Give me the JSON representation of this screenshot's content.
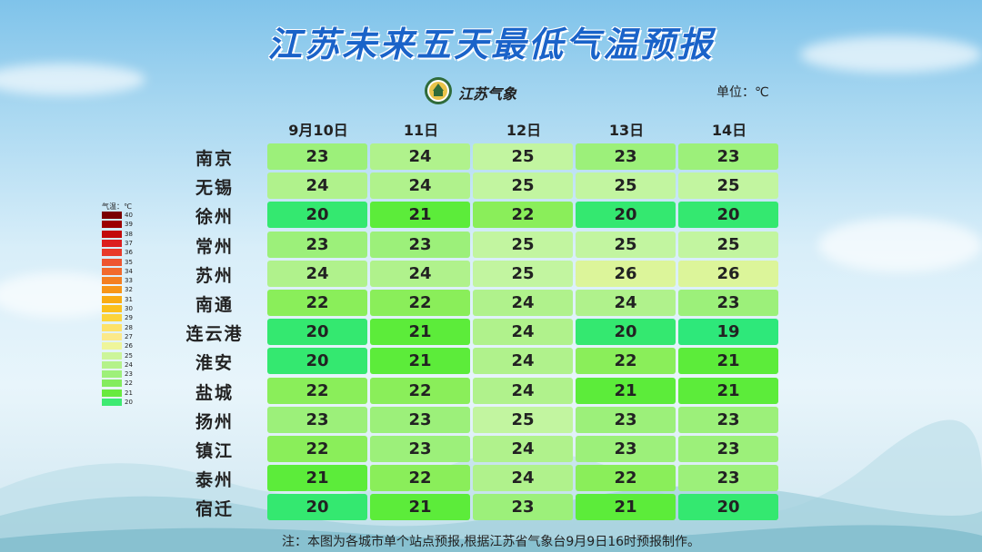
{
  "title": "江苏未来五天最低气温预报",
  "organization": "江苏气象",
  "unit_label": "单位：℃",
  "legend_title": "气温：℃",
  "legend": [
    {
      "v": "40",
      "c": "#7a0000"
    },
    {
      "v": "39",
      "c": "#9c0000"
    },
    {
      "v": "38",
      "c": "#c30a0a"
    },
    {
      "v": "37",
      "c": "#dc1e1e"
    },
    {
      "v": "36",
      "c": "#e83a2a"
    },
    {
      "v": "35",
      "c": "#ee5530"
    },
    {
      "v": "34",
      "c": "#f26a2c"
    },
    {
      "v": "33",
      "c": "#f47f20"
    },
    {
      "v": "32",
      "c": "#f79618"
    },
    {
      "v": "31",
      "c": "#f9ac14"
    },
    {
      "v": "30",
      "c": "#fbc01c"
    },
    {
      "v": "29",
      "c": "#fcd43a"
    },
    {
      "v": "28",
      "c": "#fde26a"
    },
    {
      "v": "27",
      "c": "#fbe98a"
    },
    {
      "v": "26",
      "c": "#eef59a"
    },
    {
      "v": "25",
      "c": "#ccf59a"
    },
    {
      "v": "24",
      "c": "#b4f28a"
    },
    {
      "v": "23",
      "c": "#9ef07a"
    },
    {
      "v": "22",
      "c": "#84ec5e"
    },
    {
      "v": "21",
      "c": "#68ea3e"
    },
    {
      "v": "20",
      "c": "#3eea72"
    }
  ],
  "columns": [
    "9月10日",
    "11日",
    "12日",
    "13日",
    "14日"
  ],
  "rows": [
    {
      "city": "南京",
      "values": [
        23,
        24,
        25,
        23,
        23
      ]
    },
    {
      "city": "无锡",
      "values": [
        24,
        24,
        25,
        25,
        25
      ]
    },
    {
      "city": "徐州",
      "values": [
        20,
        21,
        22,
        20,
        20
      ]
    },
    {
      "city": "常州",
      "values": [
        23,
        23,
        25,
        25,
        25
      ]
    },
    {
      "city": "苏州",
      "values": [
        24,
        24,
        25,
        26,
        26
      ]
    },
    {
      "city": "南通",
      "values": [
        22,
        22,
        24,
        24,
        23
      ]
    },
    {
      "city": "连云港",
      "values": [
        20,
        21,
        24,
        20,
        19
      ]
    },
    {
      "city": "淮安",
      "values": [
        20,
        21,
        24,
        22,
        21
      ]
    },
    {
      "city": "盐城",
      "values": [
        22,
        22,
        24,
        21,
        21
      ]
    },
    {
      "city": "扬州",
      "values": [
        23,
        23,
        25,
        23,
        23
      ]
    },
    {
      "city": "镇江",
      "values": [
        22,
        23,
        24,
        23,
        23
      ]
    },
    {
      "city": "泰州",
      "values": [
        21,
        22,
        24,
        22,
        23
      ]
    },
    {
      "city": "宿迁",
      "values": [
        20,
        21,
        23,
        21,
        20
      ]
    }
  ],
  "colors": {
    "19": "#2ee87a",
    "20": "#34e870",
    "21": "#5cec3a",
    "22": "#8aee5a",
    "23": "#9cf07a",
    "24": "#b0f28c",
    "25": "#c2f5a0",
    "26": "#dcf59a"
  },
  "note": "注：本图为各城市单个站点预报,根据江苏省气象台9月9日16时预报制作。"
}
